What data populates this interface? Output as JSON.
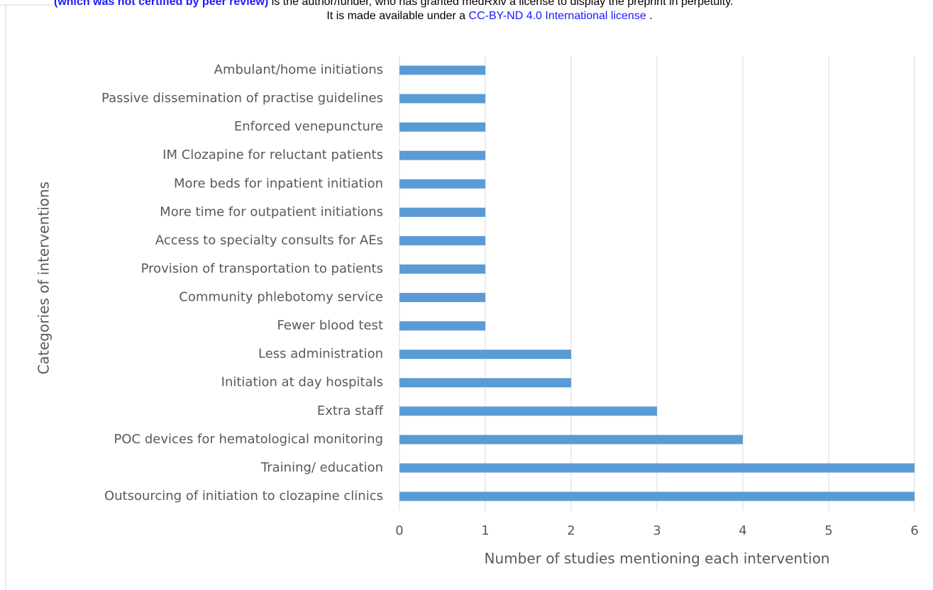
{
  "header": {
    "line1_bold": "(which was not certified by peer review)",
    "line1_rest": " is the author/funder, who has granted medRxiv a license to display the preprint in perpetuity.",
    "line2_before": "It is made available under a ",
    "line2_link": "CC-BY-ND 4.0 International license",
    "line2_after": " ."
  },
  "chart_data": {
    "type": "bar",
    "orientation": "horizontal",
    "categories": [
      "Ambulant/home initiations",
      "Passive dissemination of practise guidelines",
      "Enforced venepuncture",
      "IM Clozapine for reluctant patients",
      "More beds for inpatient initiation",
      "More time for outpatient initiations",
      "Access to specialty consults for AEs",
      "Provision of transportation to patients",
      "Community phlebotomy service",
      "Fewer blood test",
      "Less administration",
      "Initiation at day hospitals",
      "Extra staff",
      "POC devices for hematological monitoring",
      "Training/ education",
      "Outsourcing of initiation to clozapine clinics"
    ],
    "values": [
      1,
      1,
      1,
      1,
      1,
      1,
      1,
      1,
      1,
      1,
      2,
      2,
      3,
      4,
      6,
      6
    ],
    "color": "#5b9bd5",
    "xlim": [
      0,
      6
    ],
    "xticks": [
      0,
      1,
      2,
      3,
      4,
      5,
      6
    ],
    "grid": true,
    "xlabel": "Number of studies mentioning each intervention",
    "ylabel": "Categories of interventions"
  }
}
